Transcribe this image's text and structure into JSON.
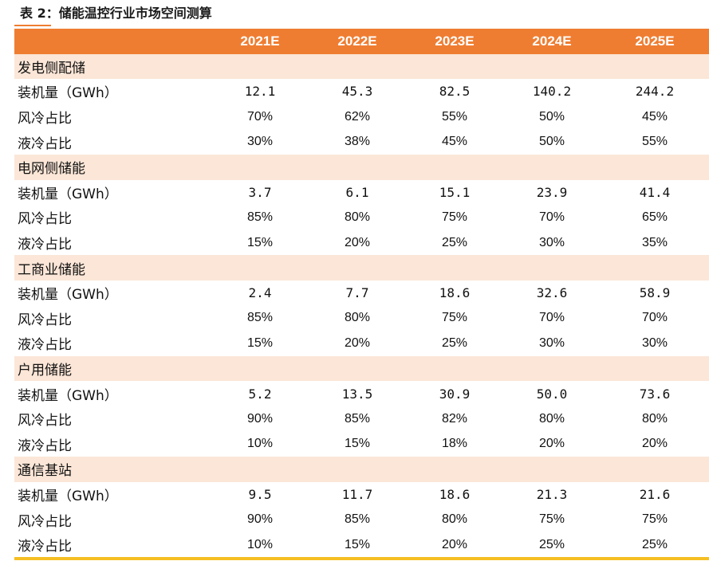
{
  "caption": "表 2：储能温控行业市场空间测算",
  "columns": [
    "2021E",
    "2022E",
    "2023E",
    "2024E",
    "2025E"
  ],
  "sections": [
    {
      "name": "发电侧配储",
      "rows": [
        {
          "label": "装机量（GWh）",
          "values": [
            "12.1",
            "45.3",
            "82.5",
            "140.2",
            "244.2"
          ]
        },
        {
          "label": "风冷占比",
          "values": [
            "70%",
            "62%",
            "55%",
            "50%",
            "45%"
          ]
        },
        {
          "label": "液冷占比",
          "values": [
            "30%",
            "38%",
            "45%",
            "50%",
            "55%"
          ]
        }
      ]
    },
    {
      "name": "电网侧储能",
      "rows": [
        {
          "label": "装机量（GWh）",
          "values": [
            "3.7",
            "6.1",
            "15.1",
            "23.9",
            "41.4"
          ]
        },
        {
          "label": "风冷占比",
          "values": [
            "85%",
            "80%",
            "75%",
            "70%",
            "65%"
          ]
        },
        {
          "label": "液冷占比",
          "values": [
            "15%",
            "20%",
            "25%",
            "30%",
            "35%"
          ]
        }
      ]
    },
    {
      "name": "工商业储能",
      "rows": [
        {
          "label": "装机量（GWh）",
          "values": [
            "2.4",
            "7.7",
            "18.6",
            "32.6",
            "58.9"
          ]
        },
        {
          "label": "风冷占比",
          "values": [
            "85%",
            "80%",
            "75%",
            "70%",
            "70%"
          ]
        },
        {
          "label": "液冷占比",
          "values": [
            "15%",
            "20%",
            "25%",
            "30%",
            "30%"
          ]
        }
      ]
    },
    {
      "name": "户用储能",
      "rows": [
        {
          "label": "装机量（GWh）",
          "values": [
            "5.2",
            "13.5",
            "30.9",
            "50.0",
            "73.6"
          ]
        },
        {
          "label": "风冷占比",
          "values": [
            "90%",
            "85%",
            "82%",
            "80%",
            "80%"
          ]
        },
        {
          "label": "液冷占比",
          "values": [
            "10%",
            "15%",
            "18%",
            "20%",
            "20%"
          ]
        }
      ]
    },
    {
      "name": "通信基站",
      "rows": [
        {
          "label": "装机量（GWh）",
          "values": [
            "9.5",
            "11.7",
            "18.6",
            "21.3",
            "21.6"
          ]
        },
        {
          "label": "风冷占比",
          "values": [
            "90%",
            "85%",
            "80%",
            "75%",
            "75%"
          ]
        },
        {
          "label": "液冷占比",
          "values": [
            "10%",
            "15%",
            "20%",
            "25%",
            "25%"
          ]
        }
      ]
    }
  ],
  "colors": {
    "header_bg": "#ef7d31",
    "category_bg": "#fbe6d7",
    "bottom_rule": "#f5be22",
    "header_text": "#ffffff"
  }
}
